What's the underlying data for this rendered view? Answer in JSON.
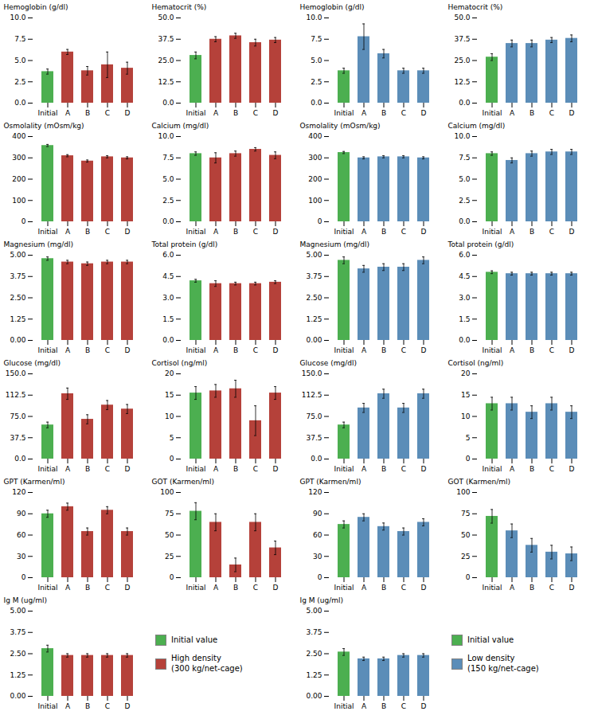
{
  "chart_data": [
    {
      "type": "bar",
      "ylabel": "Hemoglobin (g/dl)",
      "categories": [
        "Initial",
        "A",
        "B",
        "C",
        "D"
      ],
      "values": [
        3.7,
        6.0,
        3.8,
        4.5,
        4.1
      ],
      "errors": [
        0.3,
        0.3,
        0.5,
        1.5,
        0.7
      ],
      "colors": [
        "#4caf50",
        "#b5413a",
        "#b5413a",
        "#b5413a",
        "#b5413a"
      ],
      "ylim": [
        0,
        10
      ],
      "yticks": [
        {
          "value": 0,
          "label": "0.0"
        },
        2.5,
        {
          "value": 5,
          "label": "5.0"
        },
        7.5,
        {
          "value": 10,
          "label": "10.0"
        }
      ]
    },
    {
      "type": "bar",
      "ylabel": "Hematocrit (%)",
      "categories": [
        "Initial",
        "A",
        "B",
        "C",
        "D"
      ],
      "values": [
        28,
        37.5,
        39.5,
        35.5,
        37
      ],
      "errors": [
        2.0,
        1.5,
        1.5,
        2.0,
        1.5
      ],
      "colors": [
        "#4caf50",
        "#b5413a",
        "#b5413a",
        "#b5413a",
        "#b5413a"
      ],
      "ylim": [
        0,
        50
      ],
      "yticks": [
        {
          "value": 0,
          "label": "0.0"
        },
        12.5,
        {
          "value": 25,
          "label": "25.0"
        },
        37.5,
        {
          "value": 50,
          "label": "50.0"
        }
      ]
    },
    {
      "type": "bar",
      "ylabel": "Hemoglobin (g/dl)",
      "categories": [
        "Initial",
        "A",
        "B",
        "C",
        "D"
      ],
      "values": [
        3.8,
        7.8,
        5.8,
        3.8,
        3.8
      ],
      "errors": [
        0.3,
        1.5,
        0.5,
        0.3,
        0.3
      ],
      "colors": [
        "#4caf50",
        "#5b8db8",
        "#5b8db8",
        "#5b8db8",
        "#5b8db8"
      ],
      "ylim": [
        0,
        10
      ],
      "yticks": [
        {
          "value": 0,
          "label": "0.0"
        },
        2.5,
        {
          "value": 5,
          "label": "5.0"
        },
        7.5,
        {
          "value": 10,
          "label": "10.0"
        }
      ]
    },
    {
      "type": "bar",
      "ylabel": "Hematocrit (%)",
      "categories": [
        "Initial",
        "A",
        "B",
        "C",
        "D"
      ],
      "values": [
        27,
        35,
        35,
        37,
        38
      ],
      "errors": [
        2.0,
        2.0,
        2.0,
        1.5,
        2.0
      ],
      "colors": [
        "#4caf50",
        "#5b8db8",
        "#5b8db8",
        "#5b8db8",
        "#5b8db8"
      ],
      "ylim": [
        0,
        50
      ],
      "yticks": [
        {
          "value": 0,
          "label": "0.0"
        },
        12.5,
        {
          "value": 25,
          "label": "25.0"
        },
        37.5,
        {
          "value": 50,
          "label": "50.0"
        }
      ]
    },
    {
      "type": "bar",
      "ylabel": "Osmolality (mOsm/kg)",
      "categories": [
        "Initial",
        "A",
        "B",
        "C",
        "D"
      ],
      "values": [
        358,
        310,
        285,
        305,
        300
      ],
      "errors": [
        5,
        5,
        5,
        5,
        5
      ],
      "colors": [
        "#4caf50",
        "#b5413a",
        "#b5413a",
        "#b5413a",
        "#b5413a"
      ],
      "ylim": [
        0,
        400
      ],
      "yticks": [
        0,
        100,
        200,
        300,
        400
      ]
    },
    {
      "type": "bar",
      "ylabel": "Calcium (mg/dl)",
      "categories": [
        "Initial",
        "A",
        "B",
        "C",
        "D"
      ],
      "values": [
        8.0,
        7.5,
        8.0,
        8.5,
        7.8
      ],
      "errors": [
        0.2,
        0.6,
        0.3,
        0.2,
        0.4
      ],
      "colors": [
        "#4caf50",
        "#b5413a",
        "#b5413a",
        "#b5413a",
        "#b5413a"
      ],
      "ylim": [
        0,
        10
      ],
      "yticks": [
        {
          "value": 0,
          "label": "0.0"
        },
        2.5,
        {
          "value": 5,
          "label": "5.0"
        },
        7.5,
        {
          "value": 10,
          "label": "10.0"
        }
      ]
    },
    {
      "type": "bar",
      "ylabel": "Osmolality (mOsm/kg)",
      "categories": [
        "Initial",
        "A",
        "B",
        "C",
        "D"
      ],
      "values": [
        325,
        300,
        305,
        305,
        300
      ],
      "errors": [
        5,
        5,
        5,
        5,
        5
      ],
      "colors": [
        "#4caf50",
        "#5b8db8",
        "#5b8db8",
        "#5b8db8",
        "#5b8db8"
      ],
      "ylim": [
        0,
        400
      ],
      "yticks": [
        0,
        100,
        200,
        300,
        400
      ]
    },
    {
      "type": "bar",
      "ylabel": "Calcium (mg/dl)",
      "categories": [
        "Initial",
        "A",
        "B",
        "C",
        "D"
      ],
      "values": [
        8.0,
        7.2,
        8.0,
        8.2,
        8.2
      ],
      "errors": [
        0.2,
        0.3,
        0.3,
        0.3,
        0.3
      ],
      "colors": [
        "#4caf50",
        "#5b8db8",
        "#5b8db8",
        "#5b8db8",
        "#5b8db8"
      ],
      "ylim": [
        0,
        10
      ],
      "yticks": [
        {
          "value": 0,
          "label": "0.0"
        },
        2.5,
        {
          "value": 5,
          "label": "5.0"
        },
        7.5,
        {
          "value": 10,
          "label": "10.0"
        }
      ]
    },
    {
      "type": "bar",
      "ylabel": "Magnesium (mg/dl)",
      "categories": [
        "Initial",
        "A",
        "B",
        "C",
        "D"
      ],
      "values": [
        4.8,
        4.6,
        4.5,
        4.6,
        4.6
      ],
      "errors": [
        0.1,
        0.1,
        0.1,
        0.1,
        0.1
      ],
      "colors": [
        "#4caf50",
        "#b5413a",
        "#b5413a",
        "#b5413a",
        "#b5413a"
      ],
      "ylim": [
        0,
        5
      ],
      "yticks": [
        {
          "value": 0,
          "label": "0.00"
        },
        1.25,
        {
          "value": 2.5,
          "label": "2.50"
        },
        3.75,
        {
          "value": 5,
          "label": "5.00"
        }
      ]
    },
    {
      "type": "bar",
      "ylabel": "Total protein (g/dl)",
      "categories": [
        "Initial",
        "A",
        "B",
        "C",
        "D"
      ],
      "values": [
        4.2,
        4.0,
        4.0,
        4.0,
        4.1
      ],
      "errors": [
        0.1,
        0.2,
        0.1,
        0.1,
        0.1
      ],
      "colors": [
        "#4caf50",
        "#b5413a",
        "#b5413a",
        "#b5413a",
        "#b5413a"
      ],
      "ylim": [
        0,
        6
      ],
      "yticks": [
        {
          "value": 0,
          "label": "0.0"
        },
        1.5,
        {
          "value": 3,
          "label": "3.0"
        },
        4.5,
        {
          "value": 6,
          "label": "6.0"
        }
      ]
    },
    {
      "type": "bar",
      "ylabel": "Magnesium (mg/dl)",
      "categories": [
        "Initial",
        "A",
        "B",
        "C",
        "D"
      ],
      "values": [
        4.7,
        4.2,
        4.3,
        4.3,
        4.7
      ],
      "errors": [
        0.2,
        0.2,
        0.2,
        0.2,
        0.2
      ],
      "colors": [
        "#4caf50",
        "#5b8db8",
        "#5b8db8",
        "#5b8db8",
        "#5b8db8"
      ],
      "ylim": [
        0,
        5
      ],
      "yticks": [
        {
          "value": 0,
          "label": "0.00"
        },
        1.25,
        {
          "value": 2.5,
          "label": "2.50"
        },
        3.75,
        {
          "value": 5,
          "label": "5.00"
        }
      ]
    },
    {
      "type": "bar",
      "ylabel": "Total protein (g/dl)",
      "categories": [
        "Initial",
        "A",
        "B",
        "C",
        "D"
      ],
      "values": [
        4.8,
        4.7,
        4.7,
        4.7,
        4.7
      ],
      "errors": [
        0.1,
        0.1,
        0.1,
        0.1,
        0.1
      ],
      "colors": [
        "#4caf50",
        "#5b8db8",
        "#5b8db8",
        "#5b8db8",
        "#5b8db8"
      ],
      "ylim": [
        0,
        6
      ],
      "yticks": [
        {
          "value": 0,
          "label": "0.0"
        },
        1.5,
        {
          "value": 3,
          "label": "3.0"
        },
        4.5,
        {
          "value": 6,
          "label": "6.0"
        }
      ]
    },
    {
      "type": "bar",
      "ylabel": "Glucose (mg/dl)",
      "categories": [
        "Initial",
        "A",
        "B",
        "C",
        "D"
      ],
      "values": [
        60,
        115,
        70,
        95,
        88
      ],
      "errors": [
        5,
        10,
        8,
        8,
        8
      ],
      "colors": [
        "#4caf50",
        "#b5413a",
        "#b5413a",
        "#b5413a",
        "#b5413a"
      ],
      "ylim": [
        0,
        150
      ],
      "yticks": [
        {
          "value": 0,
          "label": "0.0"
        },
        37.5,
        {
          "value": 75,
          "label": "75.0"
        },
        112.5,
        {
          "value": 150,
          "label": "150.0"
        }
      ]
    },
    {
      "type": "bar",
      "ylabel": "Cortisol (ng/ml)",
      "categories": [
        "Initial",
        "A",
        "B",
        "C",
        "D"
      ],
      "values": [
        15.5,
        16,
        16.5,
        9.0,
        15.5
      ],
      "errors": [
        1.5,
        1.5,
        2.0,
        3.5,
        1.5
      ],
      "colors": [
        "#4caf50",
        "#b5413a",
        "#b5413a",
        "#b5413a",
        "#b5413a"
      ],
      "ylim": [
        0,
        20
      ],
      "yticks": [
        0,
        5,
        10,
        15,
        20
      ]
    },
    {
      "type": "bar",
      "ylabel": "Glucose (mg/dl)",
      "categories": [
        "Initial",
        "A",
        "B",
        "C",
        "D"
      ],
      "values": [
        60,
        90,
        115,
        90,
        115
      ],
      "errors": [
        5,
        8,
        8,
        8,
        8
      ],
      "colors": [
        "#4caf50",
        "#5b8db8",
        "#5b8db8",
        "#5b8db8",
        "#5b8db8"
      ],
      "ylim": [
        0,
        150
      ],
      "yticks": [
        {
          "value": 0,
          "label": "0.0"
        },
        37.5,
        {
          "value": 75,
          "label": "75.0"
        },
        112.5,
        {
          "value": 150,
          "label": "150.0"
        }
      ]
    },
    {
      "type": "bar",
      "ylabel": "Cortisol (ng/ml)",
      "categories": [
        "Initial",
        "A",
        "B",
        "C",
        "D"
      ],
      "values": [
        13,
        13,
        11,
        13,
        11
      ],
      "errors": [
        1.5,
        1.5,
        1.5,
        1.5,
        1.5
      ],
      "colors": [
        "#4caf50",
        "#5b8db8",
        "#5b8db8",
        "#5b8db8",
        "#5b8db8"
      ],
      "ylim": [
        0,
        20
      ],
      "yticks": [
        0,
        5,
        10,
        15,
        20
      ]
    },
    {
      "type": "bar",
      "ylabel": "GPT (Karmen/ml)",
      "categories": [
        "Initial",
        "A",
        "B",
        "C",
        "D"
      ],
      "values": [
        90,
        100,
        65,
        95,
        65
      ],
      "errors": [
        5,
        5,
        5,
        5,
        5
      ],
      "colors": [
        "#4caf50",
        "#b5413a",
        "#b5413a",
        "#b5413a",
        "#b5413a"
      ],
      "ylim": [
        0,
        120
      ],
      "yticks": [
        0,
        30,
        60,
        90,
        120
      ]
    },
    {
      "type": "bar",
      "ylabel": "GOT (Karmen/ml)",
      "categories": [
        "Initial",
        "A",
        "B",
        "C",
        "D"
      ],
      "values": [
        78,
        65,
        15,
        65,
        35
      ],
      "errors": [
        10,
        10,
        8,
        10,
        8
      ],
      "colors": [
        "#4caf50",
        "#b5413a",
        "#b5413a",
        "#b5413a",
        "#b5413a"
      ],
      "ylim": [
        0,
        100
      ],
      "yticks": [
        0,
        25,
        50,
        75,
        100
      ]
    },
    {
      "type": "bar",
      "ylabel": "GPT (Karmen/ml)",
      "categories": [
        "Initial",
        "A",
        "B",
        "C",
        "D"
      ],
      "values": [
        75,
        85,
        72,
        65,
        78
      ],
      "errors": [
        5,
        5,
        5,
        5,
        5
      ],
      "colors": [
        "#4caf50",
        "#5b8db8",
        "#5b8db8",
        "#5b8db8",
        "#5b8db8"
      ],
      "ylim": [
        0,
        120
      ],
      "yticks": [
        0,
        30,
        60,
        90,
        120
      ]
    },
    {
      "type": "bar",
      "ylabel": "GOT (Karmen/ml)",
      "categories": [
        "Initial",
        "A",
        "B",
        "C",
        "D"
      ],
      "values": [
        72,
        55,
        38,
        30,
        28
      ],
      "errors": [
        8,
        8,
        8,
        8,
        8
      ],
      "colors": [
        "#4caf50",
        "#5b8db8",
        "#5b8db8",
        "#5b8db8",
        "#5b8db8"
      ],
      "ylim": [
        0,
        100
      ],
      "yticks": [
        0,
        25,
        50,
        75,
        100
      ]
    },
    {
      "type": "bar",
      "ylabel": "Ig M (ug/ml)",
      "categories": [
        "Initial",
        "A",
        "B",
        "C",
        "D"
      ],
      "values": [
        2.8,
        2.4,
        2.4,
        2.4,
        2.4
      ],
      "errors": [
        0.2,
        0.1,
        0.1,
        0.1,
        0.1
      ],
      "colors": [
        "#4caf50",
        "#b5413a",
        "#b5413a",
        "#b5413a",
        "#b5413a"
      ],
      "ylim": [
        0,
        5
      ],
      "yticks": [
        {
          "value": 0,
          "label": "0.00"
        },
        1.25,
        {
          "value": 2.5,
          "label": "2.50"
        },
        3.75,
        {
          "value": 5,
          "label": "5.00"
        }
      ]
    },
    {
      "type": "legend",
      "series": [
        {
          "name": "Initial value",
          "color": "#4caf50"
        },
        {
          "name": "High density\n(300 kg/net-cage)",
          "color": "#b5413a"
        }
      ]
    },
    {
      "type": "bar",
      "ylabel": "Ig M (ug/ml)",
      "categories": [
        "Initial",
        "A",
        "B",
        "C",
        "D"
      ],
      "values": [
        2.6,
        2.2,
        2.2,
        2.4,
        2.4
      ],
      "errors": [
        0.2,
        0.1,
        0.1,
        0.1,
        0.1
      ],
      "colors": [
        "#4caf50",
        "#5b8db8",
        "#5b8db8",
        "#5b8db8",
        "#5b8db8"
      ],
      "ylim": [
        0,
        5
      ],
      "yticks": [
        {
          "value": 0,
          "label": "0.00"
        },
        1.25,
        {
          "value": 2.5,
          "label": "2.50"
        },
        3.75,
        {
          "value": 5,
          "label": "5.00"
        }
      ]
    },
    {
      "type": "legend",
      "series": [
        {
          "name": "Initial value",
          "color": "#4caf50"
        },
        {
          "name": "Low density\n(150 kg/net-cage)",
          "color": "#5b8db8"
        }
      ]
    }
  ]
}
